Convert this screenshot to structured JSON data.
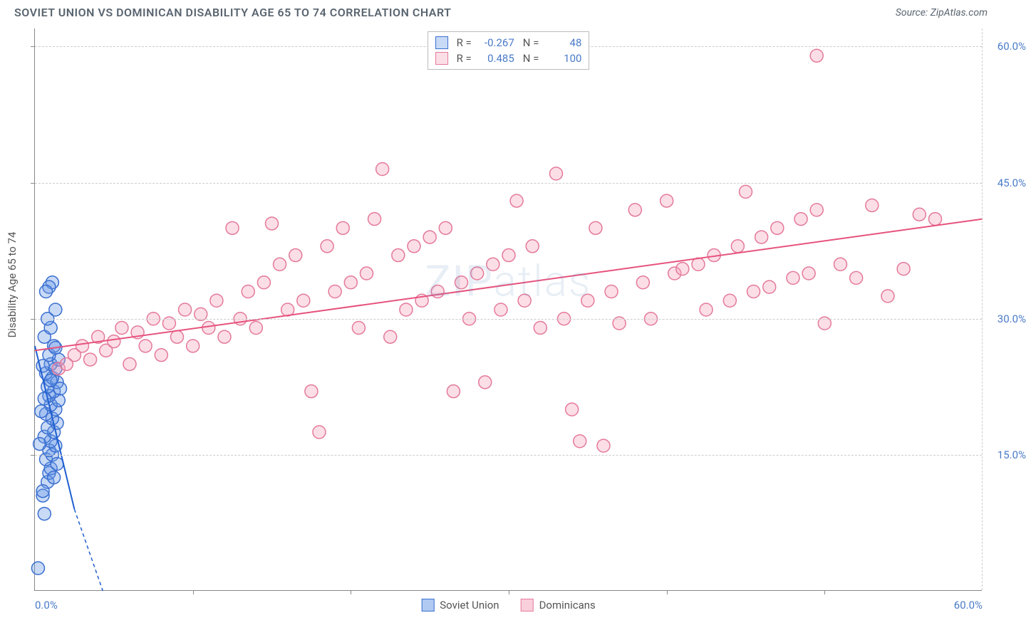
{
  "header": {
    "title": "SOVIET UNION VS DOMINICAN DISABILITY AGE 65 TO 74 CORRELATION CHART",
    "source": "Source: ZipAtlas.com"
  },
  "chart": {
    "type": "scatter",
    "ylabel": "Disability Age 65 to 74",
    "xlim": [
      0,
      60
    ],
    "ylim": [
      0,
      62
    ],
    "xtick_labels": [
      "0.0%",
      "60.0%"
    ],
    "xtick_positions": [
      0,
      60
    ],
    "ytick_labels": [
      "15.0%",
      "30.0%",
      "45.0%",
      "60.0%"
    ],
    "ytick_positions": [
      15,
      30,
      45,
      60
    ],
    "x_minor_ticks": [
      10,
      20,
      30,
      40,
      50
    ],
    "grid_color": "#cccccc",
    "background_color": "#ffffff",
    "marker_radius": 9,
    "marker_stroke_width": 1.5,
    "line_width": 2,
    "series": [
      {
        "name": "Soviet Union",
        "fill_color": "rgba(100,150,230,0.35)",
        "stroke_color": "#3a6fd0",
        "line_color": "#1f5fd0",
        "R": "-0.267",
        "N": "48",
        "trend": {
          "x1": 0,
          "y1": 27,
          "x2": 2.5,
          "y2": 9,
          "dash_extend": {
            "x2": 4.3,
            "y2": 0
          }
        },
        "points": [
          [
            0.2,
            2.5
          ],
          [
            0.5,
            10.5
          ],
          [
            0.6,
            8.5
          ],
          [
            0.8,
            12
          ],
          [
            0.9,
            13
          ],
          [
            1.0,
            13.5
          ],
          [
            0.7,
            14.5
          ],
          [
            1.1,
            15
          ],
          [
            0.9,
            15.5
          ],
          [
            1.3,
            16
          ],
          [
            1.0,
            16.5
          ],
          [
            0.6,
            17
          ],
          [
            1.2,
            17.5
          ],
          [
            0.8,
            18
          ],
          [
            1.4,
            18.5
          ],
          [
            1.1,
            19
          ],
          [
            0.7,
            19.5
          ],
          [
            1.3,
            20
          ],
          [
            1.0,
            20.5
          ],
          [
            1.5,
            21
          ],
          [
            0.9,
            21.5
          ],
          [
            1.2,
            22
          ],
          [
            0.8,
            22.5
          ],
          [
            1.4,
            23
          ],
          [
            1.1,
            23.5
          ],
          [
            0.7,
            24
          ],
          [
            1.3,
            24.5
          ],
          [
            1.0,
            25
          ],
          [
            1.5,
            25.5
          ],
          [
            0.9,
            26
          ],
          [
            1.2,
            27
          ],
          [
            0.6,
            28
          ],
          [
            1.0,
            29
          ],
          [
            0.8,
            30
          ],
          [
            1.3,
            31
          ],
          [
            0.5,
            24.8
          ],
          [
            1.6,
            22.3
          ],
          [
            0.4,
            19.8
          ],
          [
            1.1,
            34
          ],
          [
            0.9,
            33.5
          ],
          [
            0.7,
            33
          ],
          [
            1.2,
            12.5
          ],
          [
            0.5,
            11
          ],
          [
            1.4,
            14
          ],
          [
            0.3,
            16.2
          ],
          [
            1.0,
            23.2
          ],
          [
            0.6,
            21.2
          ],
          [
            1.3,
            26.8
          ]
        ]
      },
      {
        "name": "Dominicans",
        "fill_color": "rgba(245,160,185,0.35)",
        "stroke_color": "#e47a9a",
        "line_color": "#e6537d",
        "R": "0.485",
        "N": "100",
        "trend": {
          "x1": 0,
          "y1": 26.5,
          "x2": 60,
          "y2": 41
        },
        "points": [
          [
            1.5,
            24.5
          ],
          [
            2,
            25
          ],
          [
            2.5,
            26
          ],
          [
            3,
            27
          ],
          [
            3.5,
            25.5
          ],
          [
            4,
            28
          ],
          [
            4.5,
            26.5
          ],
          [
            5,
            27.5
          ],
          [
            5.5,
            29
          ],
          [
            6,
            25
          ],
          [
            6.5,
            28.5
          ],
          [
            7,
            27
          ],
          [
            7.5,
            30
          ],
          [
            8,
            26
          ],
          [
            8.5,
            29.5
          ],
          [
            9,
            28
          ],
          [
            9.5,
            31
          ],
          [
            10,
            27
          ],
          [
            10.5,
            30.5
          ],
          [
            11,
            29
          ],
          [
            11.5,
            32
          ],
          [
            12,
            28
          ],
          [
            12.5,
            40
          ],
          [
            13,
            30
          ],
          [
            13.5,
            33
          ],
          [
            14,
            29
          ],
          [
            14.5,
            34
          ],
          [
            15,
            40.5
          ],
          [
            15.5,
            36
          ],
          [
            16,
            31
          ],
          [
            16.5,
            37
          ],
          [
            17,
            32
          ],
          [
            17.5,
            22
          ],
          [
            18,
            17.5
          ],
          [
            18.5,
            38
          ],
          [
            19,
            33
          ],
          [
            19.5,
            40
          ],
          [
            20,
            34
          ],
          [
            20.5,
            29
          ],
          [
            21,
            35
          ],
          [
            21.5,
            41
          ],
          [
            22,
            46.5
          ],
          [
            22.5,
            28
          ],
          [
            23,
            37
          ],
          [
            23.5,
            31
          ],
          [
            24,
            38
          ],
          [
            24.5,
            32
          ],
          [
            25,
            39
          ],
          [
            25.5,
            33
          ],
          [
            26,
            40
          ],
          [
            26.5,
            22
          ],
          [
            27,
            34
          ],
          [
            27.5,
            30
          ],
          [
            28,
            35
          ],
          [
            28.5,
            23
          ],
          [
            29,
            36
          ],
          [
            29.5,
            31
          ],
          [
            30,
            37
          ],
          [
            30.5,
            43
          ],
          [
            31,
            32
          ],
          [
            31.5,
            38
          ],
          [
            32,
            29
          ],
          [
            33,
            46
          ],
          [
            33.5,
            30
          ],
          [
            34,
            20
          ],
          [
            34.5,
            16.5
          ],
          [
            35,
            32
          ],
          [
            35.5,
            40
          ],
          [
            36,
            16
          ],
          [
            36.5,
            33
          ],
          [
            37,
            29.5
          ],
          [
            38,
            42
          ],
          [
            38.5,
            34
          ],
          [
            39,
            30
          ],
          [
            40,
            43
          ],
          [
            40.5,
            35
          ],
          [
            41,
            35.5
          ],
          [
            42,
            36
          ],
          [
            42.5,
            31
          ],
          [
            43,
            37
          ],
          [
            44,
            32
          ],
          [
            44.5,
            38
          ],
          [
            45,
            44
          ],
          [
            45.5,
            33
          ],
          [
            46,
            39
          ],
          [
            46.5,
            33.5
          ],
          [
            47,
            40
          ],
          [
            48,
            34.5
          ],
          [
            48.5,
            41
          ],
          [
            49,
            35
          ],
          [
            49.5,
            42
          ],
          [
            50,
            29.5
          ],
          [
            51,
            36
          ],
          [
            52,
            34.5
          ],
          [
            53,
            42.5
          ],
          [
            54,
            32.5
          ],
          [
            55,
            35.5
          ],
          [
            56,
            41.5
          ],
          [
            49.5,
            59
          ],
          [
            57,
            41
          ]
        ]
      }
    ],
    "watermark": "ZIPatlas"
  },
  "legend_bottom": [
    {
      "label": "Soviet Union",
      "fill": "rgba(100,150,230,0.5)",
      "stroke": "#3a6fd0"
    },
    {
      "label": "Dominicans",
      "fill": "rgba(245,160,185,0.5)",
      "stroke": "#e47a9a"
    }
  ]
}
